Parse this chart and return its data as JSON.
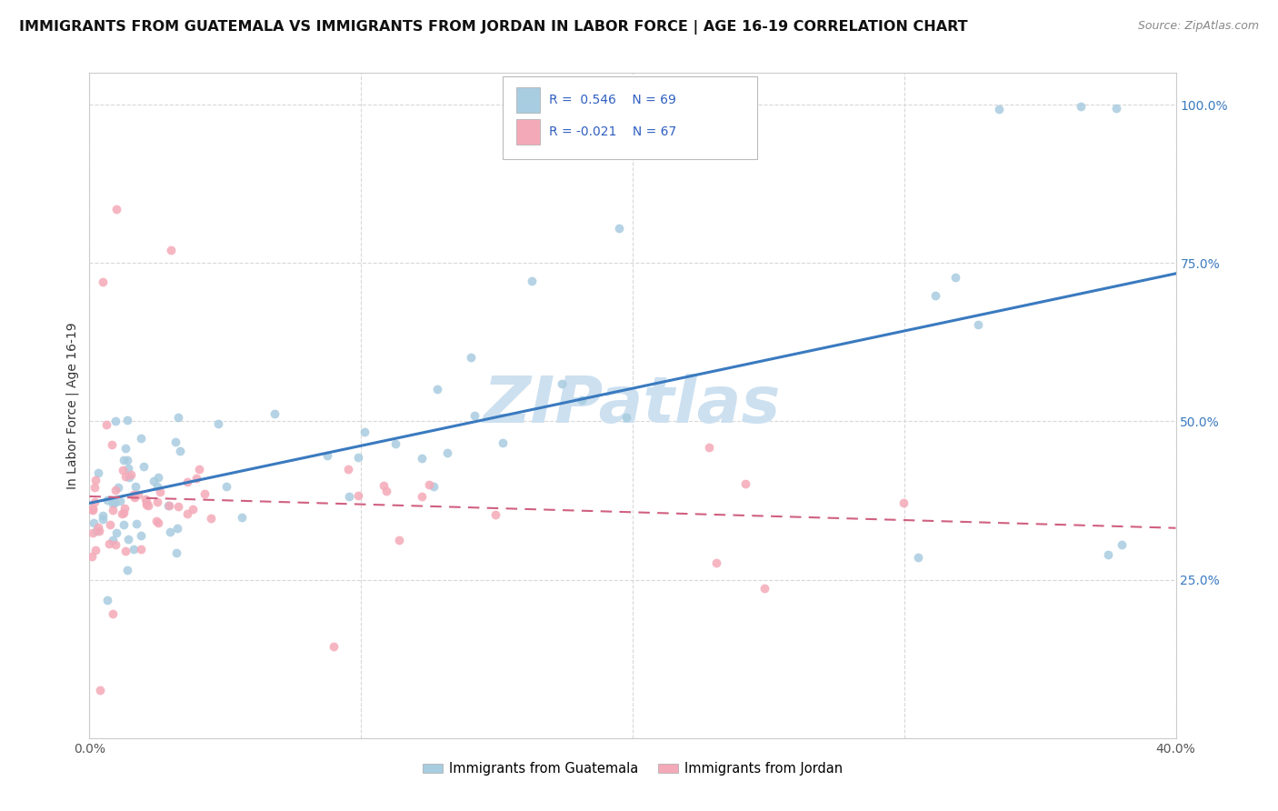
{
  "title": "IMMIGRANTS FROM GUATEMALA VS IMMIGRANTS FROM JORDAN IN LABOR FORCE | AGE 16-19 CORRELATION CHART",
  "source_text": "Source: ZipAtlas.com",
  "ylabel": "In Labor Force | Age 16-19",
  "xlim": [
    0.0,
    0.4
  ],
  "ylim": [
    0.0,
    1.05
  ],
  "watermark": "ZIPatlas",
  "legend_blue_label": "Immigrants from Guatemala",
  "legend_pink_label": "Immigrants from Jordan",
  "blue_color": "#a8cce0",
  "pink_color": "#f4a9b8",
  "trend_blue_color": "#3a7abf",
  "trend_pink_color": "#d06080",
  "background_color": "#ffffff",
  "grid_color": "#d8d8d8",
  "title_fontsize": 11.5,
  "axis_label_fontsize": 10,
  "tick_fontsize": 10,
  "watermark_fontsize": 52,
  "watermark_color": "#cce0f0",
  "legend_r_color": "#3060c0",
  "legend_n_color": "#3060c0"
}
